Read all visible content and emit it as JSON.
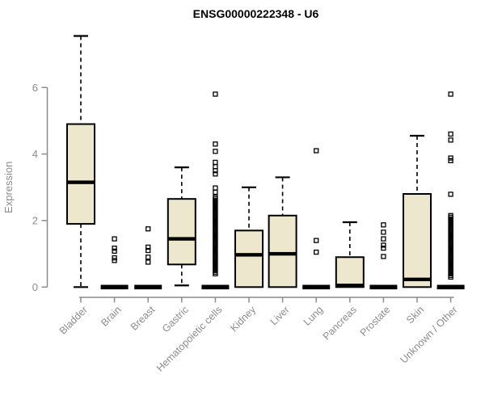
{
  "chart_data": {
    "type": "boxplot",
    "title": "ENSG00000222348 - U6",
    "ylabel": "Expression",
    "xlabel": "",
    "ylim": [
      0,
      7.6
    ],
    "yticks": [
      0,
      2,
      4,
      6
    ],
    "grid": false,
    "legend": false,
    "categories": [
      "Bladder",
      "Brain",
      "Breast",
      "Gastric",
      "Hematopoietic cells",
      "Kidney",
      "Liver",
      "Lung",
      "Pancreas",
      "Prostate",
      "Skin",
      "Unknown / Other"
    ],
    "series": [
      {
        "name": "Bladder",
        "flat": false,
        "low": 0,
        "q1": 1.9,
        "median": 3.15,
        "q3": 4.9,
        "high": 7.55,
        "outliers": []
      },
      {
        "name": "Brain",
        "flat": true,
        "low": 0,
        "q1": 0,
        "median": 0,
        "q3": 0,
        "high": 0,
        "outliers": [
          1.45,
          1.17,
          1.08,
          0.88,
          0.8
        ]
      },
      {
        "name": "Breast",
        "flat": true,
        "low": 0,
        "q1": 0,
        "median": 0,
        "q3": 0,
        "high": 0,
        "outliers": [
          1.75,
          1.2,
          1.1,
          0.9,
          0.75
        ]
      },
      {
        "name": "Gastric",
        "flat": false,
        "low": 0.05,
        "q1": 0.68,
        "median": 1.45,
        "q3": 2.65,
        "high": 3.6,
        "outliers": []
      },
      {
        "name": "Hematopoietic cells",
        "flat": true,
        "low": 0,
        "q1": 0,
        "median": 0,
        "q3": 0,
        "high": 0,
        "outliers": [
          5.8,
          4.3,
          4.08,
          3.75,
          3.62,
          3.5,
          3.4,
          2.98,
          2.85,
          0.4,
          0.45,
          0.5,
          0.55,
          0.6,
          0.65,
          0.7,
          0.75,
          0.8,
          0.85,
          0.9,
          0.95,
          1.0,
          1.05,
          1.1,
          1.15,
          1.2,
          1.25,
          1.3,
          1.35,
          1.4,
          1.45,
          1.5,
          1.55,
          1.6,
          1.65,
          1.7,
          1.75,
          1.8,
          1.85,
          1.9,
          1.95,
          2.0,
          2.05,
          2.1,
          2.15,
          2.2,
          2.25,
          2.3,
          2.35,
          2.4,
          2.45,
          2.5,
          2.55,
          2.6,
          2.65,
          2.7
        ]
      },
      {
        "name": "Kidney",
        "flat": false,
        "low": 0,
        "q1": 0,
        "median": 0.97,
        "q3": 1.7,
        "high": 3.0,
        "outliers": []
      },
      {
        "name": "Liver",
        "flat": false,
        "low": 0,
        "q1": 0,
        "median": 1.0,
        "q3": 2.15,
        "high": 3.3,
        "outliers": []
      },
      {
        "name": "Lung",
        "flat": true,
        "low": 0,
        "q1": 0,
        "median": 0,
        "q3": 0,
        "high": 0,
        "outliers": [
          4.1,
          1.4,
          1.05
        ]
      },
      {
        "name": "Pancreas",
        "flat": false,
        "low": 0,
        "q1": 0,
        "median": 0.05,
        "q3": 0.9,
        "high": 1.95,
        "outliers": []
      },
      {
        "name": "Prostate",
        "flat": true,
        "low": 0,
        "q1": 0,
        "median": 0,
        "q3": 0,
        "high": 0,
        "outliers": [
          1.87,
          1.65,
          1.45,
          1.26,
          1.17,
          0.92
        ]
      },
      {
        "name": "Skin",
        "flat": false,
        "low": 0,
        "q1": 0,
        "median": 0.23,
        "q3": 2.8,
        "high": 4.55,
        "outliers": []
      },
      {
        "name": "Unknown / Other",
        "flat": true,
        "low": 0,
        "q1": 0,
        "median": 0,
        "q3": 0,
        "high": 0,
        "outliers": [
          5.8,
          4.6,
          4.42,
          3.88,
          3.8,
          2.79,
          0.3,
          0.35,
          0.4,
          0.45,
          0.5,
          0.55,
          0.6,
          0.65,
          0.7,
          0.75,
          0.8,
          0.85,
          0.9,
          0.95,
          1.0,
          1.05,
          1.1,
          1.15,
          1.2,
          1.25,
          1.3,
          1.35,
          1.4,
          1.45,
          1.5,
          1.55,
          1.6,
          1.65,
          1.7,
          1.75,
          1.8,
          1.85,
          1.9,
          1.95,
          2.0,
          2.05,
          2.1,
          2.15
        ]
      }
    ],
    "colors": {
      "box_fill": "#EDE8CD",
      "box_stroke": "#000000",
      "median": "#000000",
      "whisker": "#000000",
      "axis": "#8c8c8c",
      "title": "#000000",
      "background": "#ffffff"
    }
  }
}
